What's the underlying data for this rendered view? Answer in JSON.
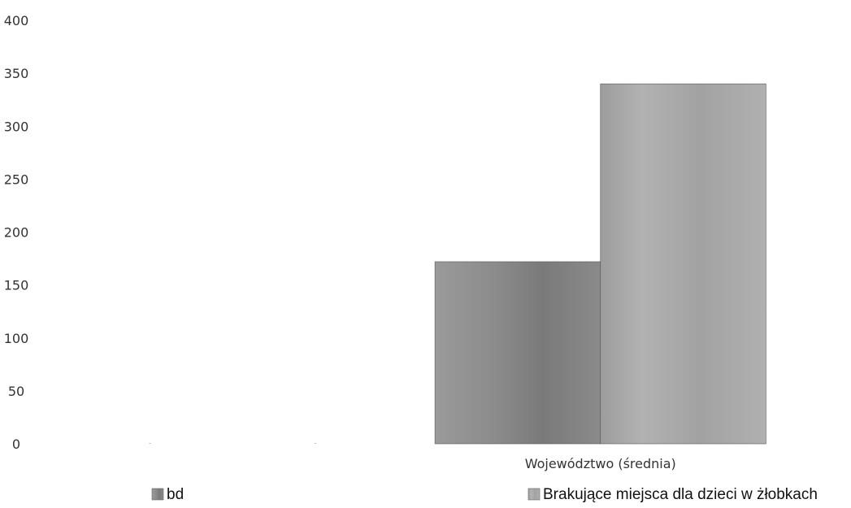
{
  "chart_data": {
    "type": "bar",
    "categories": [
      "",
      "Województwo (średnia)"
    ],
    "series": [
      {
        "name": "bd",
        "color": "#8a8a8a",
        "values": [
          0,
          172
        ]
      },
      {
        "name": "Brakujące miejsca dla dzieci w żłobkach",
        "color": "#a3a3a3",
        "values": [
          0,
          340
        ]
      }
    ],
    "ylim": [
      0,
      400
    ],
    "yticks": [
      "0",
      "50",
      "100",
      "150",
      "200",
      "250",
      "300",
      "350",
      "400"
    ],
    "grid": false,
    "legend_position": "bottom",
    "title": "",
    "xlabel": "",
    "ylabel": ""
  }
}
